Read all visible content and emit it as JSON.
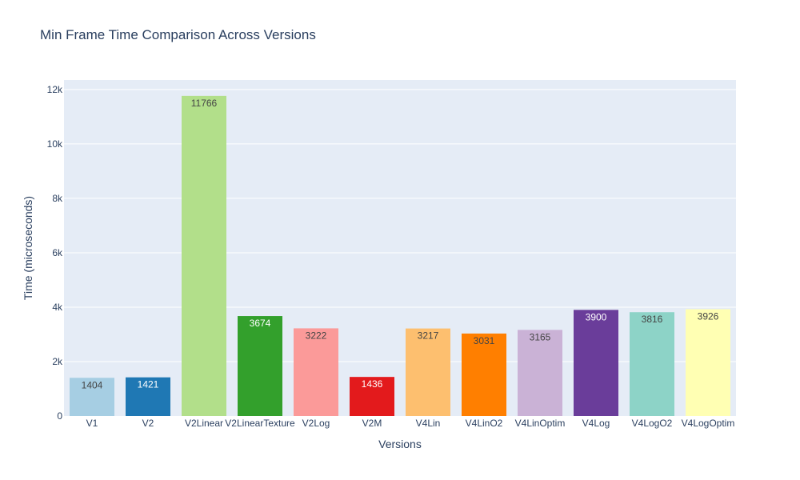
{
  "chart_data": {
    "type": "bar",
    "title": "Min Frame Time Comparison Across Versions",
    "xlabel": "Versions",
    "ylabel": "Time (microseconds)",
    "ylim": [
      0,
      12350
    ],
    "yticks": [
      0,
      2000,
      4000,
      6000,
      8000,
      10000,
      12000
    ],
    "ytick_labels": [
      "0",
      "2k",
      "4k",
      "6k",
      "8k",
      "10k",
      "12k"
    ],
    "grid": true,
    "categories": [
      "V1",
      "V2",
      "V2Linear",
      "V2LinearTexture",
      "V2Log",
      "V2M",
      "V4Lin",
      "V4LinO2",
      "V4LinOptim",
      "V4Log",
      "V4LogO2",
      "V4LogOptim"
    ],
    "values": [
      1404,
      1421,
      11766,
      3674,
      3222,
      1436,
      3217,
      3031,
      3165,
      3900,
      3816,
      3926
    ],
    "colors": [
      "#a6cee3",
      "#1f78b4",
      "#b2df8a",
      "#33a02c",
      "#fb9a99",
      "#e31a1c",
      "#fdbf6f",
      "#ff7f00",
      "#cab2d6",
      "#6a3d9a",
      "#8dd3c7",
      "#ffffb3"
    ],
    "label_colors": [
      "#444444",
      "#ffffff",
      "#444444",
      "#ffffff",
      "#444444",
      "#ffffff",
      "#444444",
      "#444444",
      "#444444",
      "#ffffff",
      "#444444",
      "#444444"
    ],
    "plot_bg": "#e5ecf6",
    "text_color": "#2a3f5f"
  }
}
